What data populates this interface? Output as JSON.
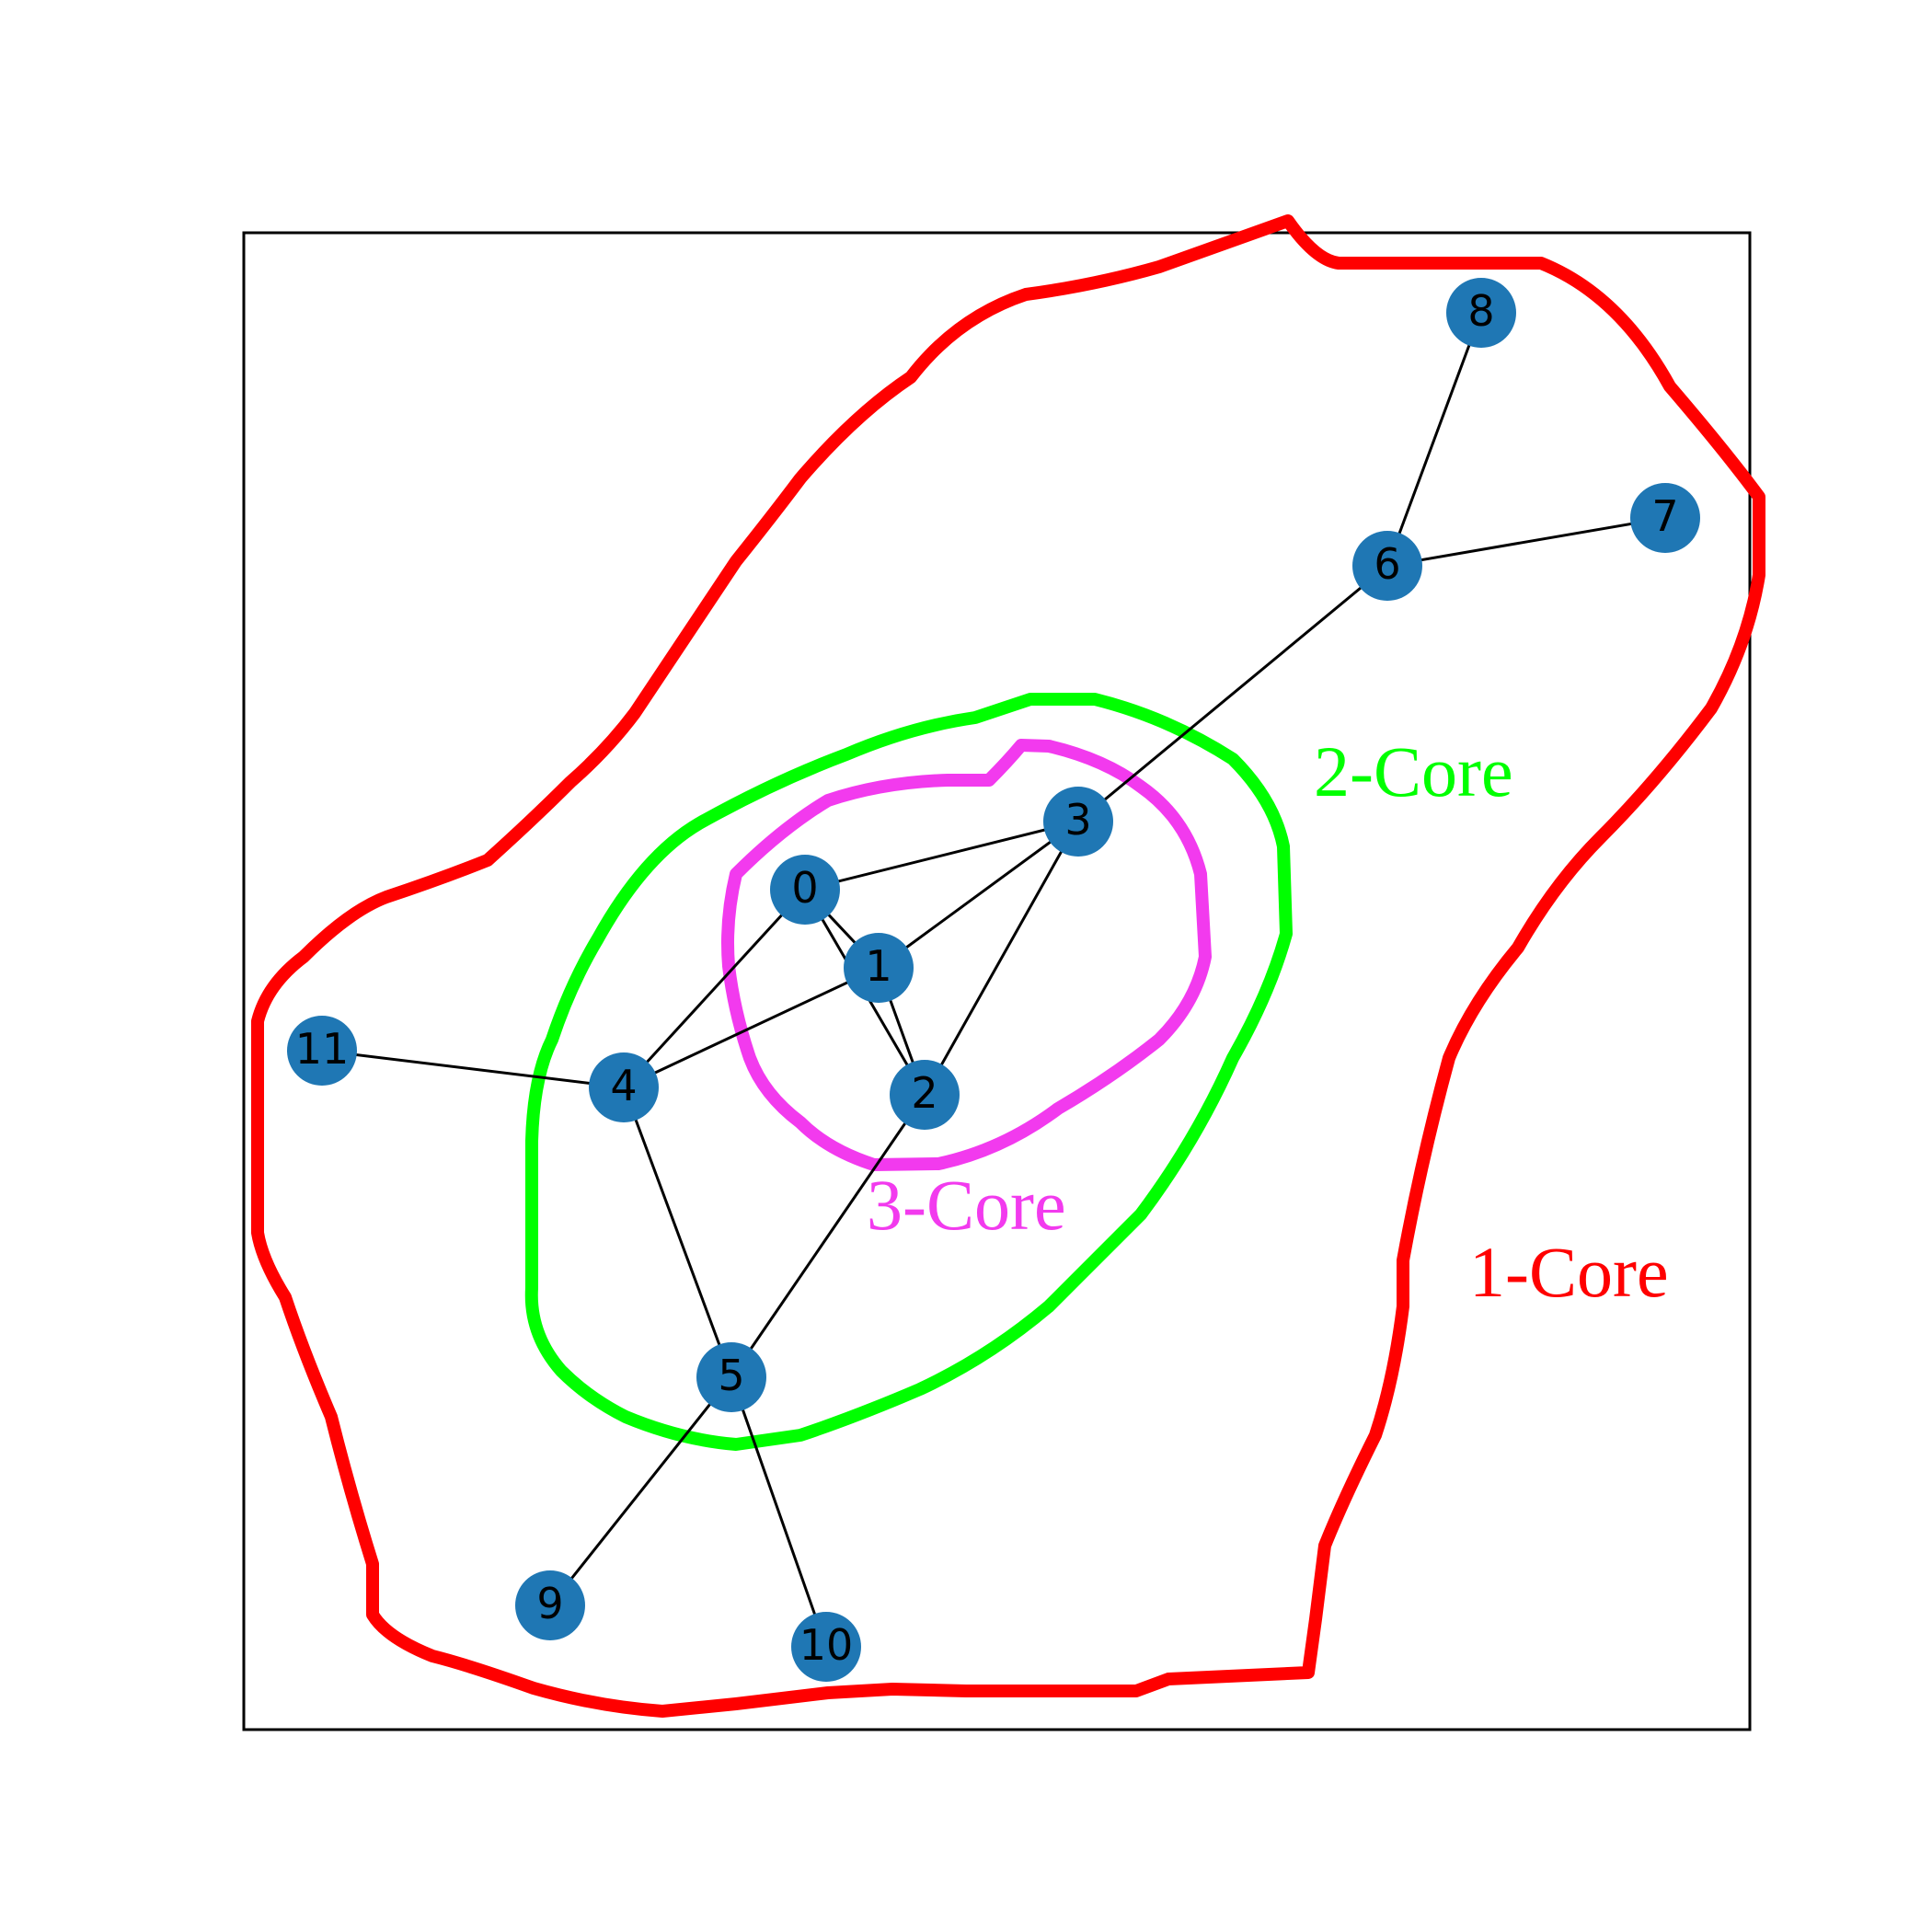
{
  "graph": {
    "node_color": "#1f77b4",
    "nodes": [
      {
        "id": "0",
        "label": "0"
      },
      {
        "id": "1",
        "label": "1"
      },
      {
        "id": "2",
        "label": "2"
      },
      {
        "id": "3",
        "label": "3"
      },
      {
        "id": "4",
        "label": "4"
      },
      {
        "id": "5",
        "label": "5"
      },
      {
        "id": "6",
        "label": "6"
      },
      {
        "id": "7",
        "label": "7"
      },
      {
        "id": "8",
        "label": "8"
      },
      {
        "id": "9",
        "label": "9"
      },
      {
        "id": "10",
        "label": "10"
      },
      {
        "id": "11",
        "label": "11"
      }
    ],
    "edges": [
      [
        "0",
        "1"
      ],
      [
        "0",
        "2"
      ],
      [
        "0",
        "3"
      ],
      [
        "0",
        "4"
      ],
      [
        "1",
        "2"
      ],
      [
        "1",
        "3"
      ],
      [
        "1",
        "4"
      ],
      [
        "2",
        "3"
      ],
      [
        "2",
        "5"
      ],
      [
        "3",
        "6"
      ],
      [
        "4",
        "5"
      ],
      [
        "4",
        "11"
      ],
      [
        "5",
        "9"
      ],
      [
        "5",
        "10"
      ],
      [
        "6",
        "7"
      ],
      [
        "6",
        "8"
      ]
    ]
  },
  "cores": [
    {
      "id": "core-1",
      "label": "1-Core",
      "color": "#ff0000"
    },
    {
      "id": "core-2",
      "label": "2-Core",
      "color": "#00ff00"
    },
    {
      "id": "core-3",
      "label": "3-Core",
      "color": "#f23aee"
    }
  ]
}
